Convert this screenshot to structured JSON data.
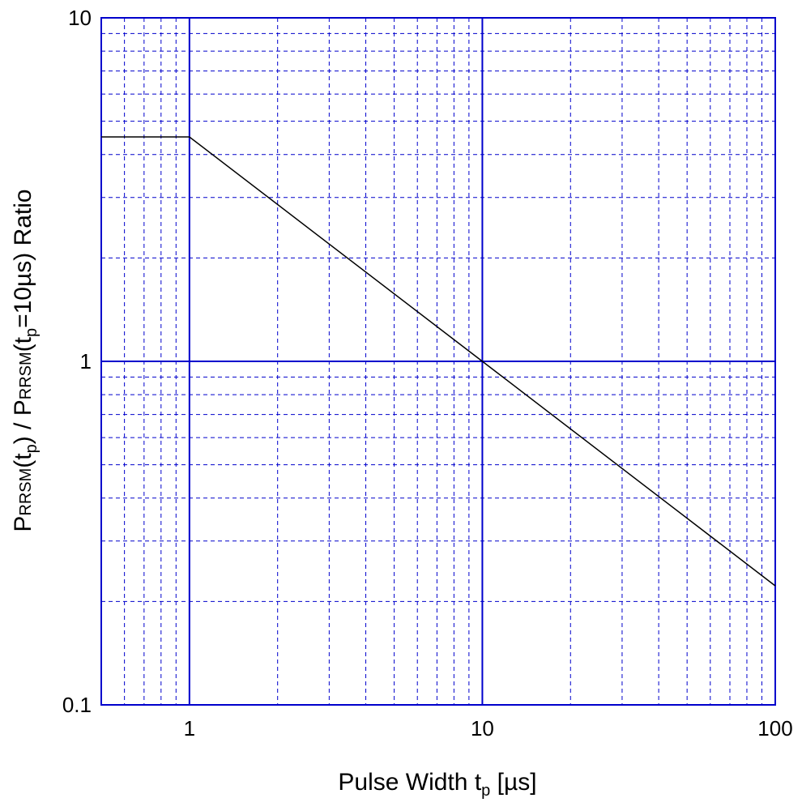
{
  "chart_data": {
    "type": "line",
    "x_scale": "log",
    "y_scale": "log",
    "xlim": [
      0.5,
      100
    ],
    "ylim": [
      0.1,
      10
    ],
    "grid": true,
    "colors": {
      "grid": "#0000cc",
      "line": "#000000"
    },
    "xlabel": {
      "main": "Pulse Width  t",
      "sub": "p",
      "tail": "  [µs]"
    },
    "ylabel": {
      "p1": "P",
      "s1": "RRSM",
      "p2": "(t",
      "s2": "p",
      "p3": ") / P",
      "s3": "RRSM",
      "p4": "(t",
      "s4": "p",
      "p5": "=10µs) Ratio"
    },
    "x_ticks": [
      {
        "value": 1,
        "label": "1"
      },
      {
        "value": 10,
        "label": "10"
      },
      {
        "value": 100,
        "label": "100"
      }
    ],
    "y_ticks": [
      {
        "value": 10,
        "label": "10"
      },
      {
        "value": 1,
        "label": "1"
      },
      {
        "value": 0.1,
        "label": "0.1"
      }
    ],
    "series": [
      {
        "x": [
          0.5,
          1,
          10,
          100
        ],
        "y": [
          4.5,
          4.5,
          1.0,
          0.222
        ]
      }
    ]
  }
}
